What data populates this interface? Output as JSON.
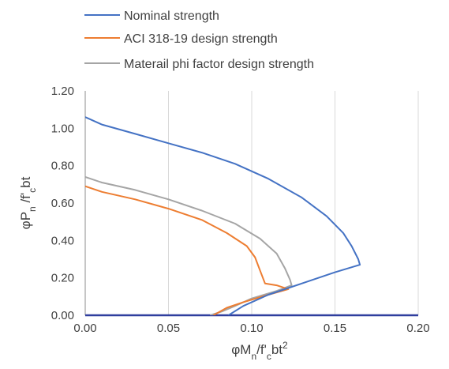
{
  "chart_data": {
    "type": "line",
    "title": "",
    "xlabel": {
      "parts": [
        {
          "text": "φM"
        },
        {
          "text": "n",
          "shift": "sub"
        },
        {
          "text": "/f'"
        },
        {
          "text": "c",
          "shift": "sub"
        },
        {
          "text": "bt"
        },
        {
          "text": "2",
          "shift": "super"
        }
      ]
    },
    "ylabel": {
      "parts": [
        {
          "text": "φP"
        },
        {
          "text": "n",
          "shift": "sub"
        },
        {
          "text": " /f'"
        },
        {
          "text": "c",
          "shift": "sub"
        },
        {
          "text": "bt"
        }
      ]
    },
    "xlim": [
      0,
      0.2
    ],
    "ylim": [
      0,
      1.2
    ],
    "x_ticks": [
      "0.00",
      "0.05",
      "0.10",
      "0.15",
      "0.20"
    ],
    "y_ticks": [
      "0.00",
      "0.20",
      "0.40",
      "0.60",
      "0.80",
      "1.00",
      "1.20"
    ],
    "grid": "vertical",
    "legend_position": "top",
    "series": [
      {
        "name": "Nominal strength",
        "color": "#4472c4",
        "points": [
          [
            0.0,
            1.06
          ],
          [
            0.01,
            1.02
          ],
          [
            0.03,
            0.97
          ],
          [
            0.05,
            0.92
          ],
          [
            0.07,
            0.87
          ],
          [
            0.09,
            0.81
          ],
          [
            0.11,
            0.73
          ],
          [
            0.13,
            0.63
          ],
          [
            0.145,
            0.53
          ],
          [
            0.155,
            0.44
          ],
          [
            0.16,
            0.37
          ],
          [
            0.164,
            0.3
          ],
          [
            0.165,
            0.27
          ],
          [
            0.15,
            0.23
          ],
          [
            0.13,
            0.17
          ],
          [
            0.11,
            0.11
          ],
          [
            0.095,
            0.05
          ],
          [
            0.086,
            0.0
          ]
        ]
      },
      {
        "name": "ACI 318-19 design strength",
        "color": "#ed7d31",
        "points": [
          [
            0.0,
            0.69
          ],
          [
            0.01,
            0.66
          ],
          [
            0.03,
            0.62
          ],
          [
            0.05,
            0.57
          ],
          [
            0.07,
            0.51
          ],
          [
            0.085,
            0.44
          ],
          [
            0.097,
            0.37
          ],
          [
            0.102,
            0.31
          ],
          [
            0.105,
            0.24
          ],
          [
            0.108,
            0.17
          ],
          [
            0.115,
            0.16
          ],
          [
            0.122,
            0.14
          ],
          [
            0.11,
            0.11
          ],
          [
            0.095,
            0.07
          ],
          [
            0.085,
            0.04
          ],
          [
            0.077,
            0.0
          ]
        ]
      },
      {
        "name": "Materail phi factor design strength",
        "color": "#a5a5a5",
        "points": [
          [
            0.0,
            0.74
          ],
          [
            0.01,
            0.71
          ],
          [
            0.03,
            0.67
          ],
          [
            0.05,
            0.62
          ],
          [
            0.07,
            0.56
          ],
          [
            0.09,
            0.49
          ],
          [
            0.105,
            0.41
          ],
          [
            0.115,
            0.33
          ],
          [
            0.12,
            0.25
          ],
          [
            0.123,
            0.19
          ],
          [
            0.124,
            0.16
          ],
          [
            0.115,
            0.13
          ],
          [
            0.1,
            0.09
          ],
          [
            0.09,
            0.05
          ],
          [
            0.082,
            0.02
          ],
          [
            0.075,
            0.0
          ]
        ]
      }
    ]
  }
}
